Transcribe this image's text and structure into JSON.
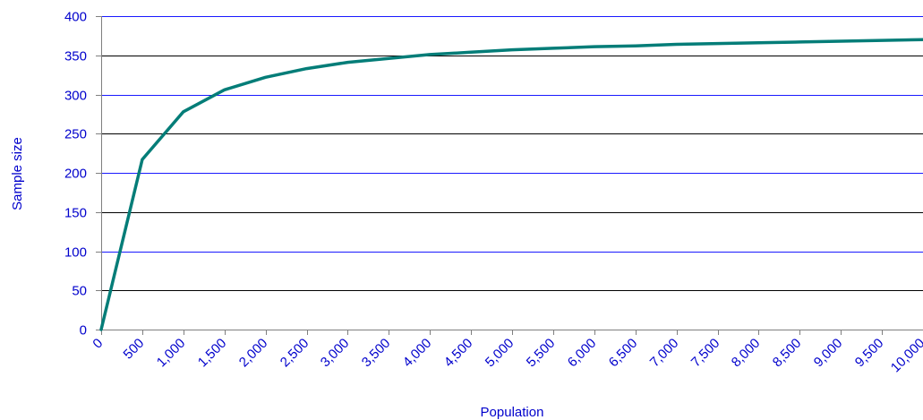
{
  "chart_data": {
    "type": "line",
    "title": "",
    "xlabel": "Population",
    "ylabel": "Sample size",
    "x": [
      0,
      500,
      1000,
      1500,
      2000,
      2500,
      3000,
      3500,
      4000,
      4500,
      5000,
      5500,
      6000,
      6500,
      7000,
      7500,
      8000,
      8500,
      9000,
      9500,
      10000
    ],
    "x_tick_labels": [
      "0",
      "500",
      "1,000",
      "1,500",
      "2,000",
      "2,500",
      "3,000",
      "3,500",
      "4,000",
      "4,500",
      "5,000",
      "5,500",
      "6,000",
      "6,500",
      "7,000",
      "7,500",
      "8,000",
      "8,500",
      "9,000",
      "9,500",
      "10,000"
    ],
    "y_ticks": [
      0,
      50,
      100,
      150,
      200,
      250,
      300,
      350,
      400
    ],
    "y_tick_labels": [
      "0",
      "50",
      "100",
      "150",
      "200",
      "250",
      "300",
      "350",
      "400"
    ],
    "xlim": [
      0,
      10000
    ],
    "ylim": [
      0,
      400
    ],
    "grid": "horizontal",
    "legend": "none",
    "series": [
      {
        "values": [
          0,
          217,
          278,
          306,
          322,
          333,
          341,
          346,
          351,
          354,
          357,
          359,
          361,
          362,
          364,
          365,
          366,
          367,
          368,
          369,
          370
        ]
      }
    ],
    "colors": {
      "line": "#047d78",
      "grid_blue": "#1a1aff",
      "grid_black": "#000000",
      "text": "#0000cc",
      "axis": "#7f7f7f"
    }
  }
}
